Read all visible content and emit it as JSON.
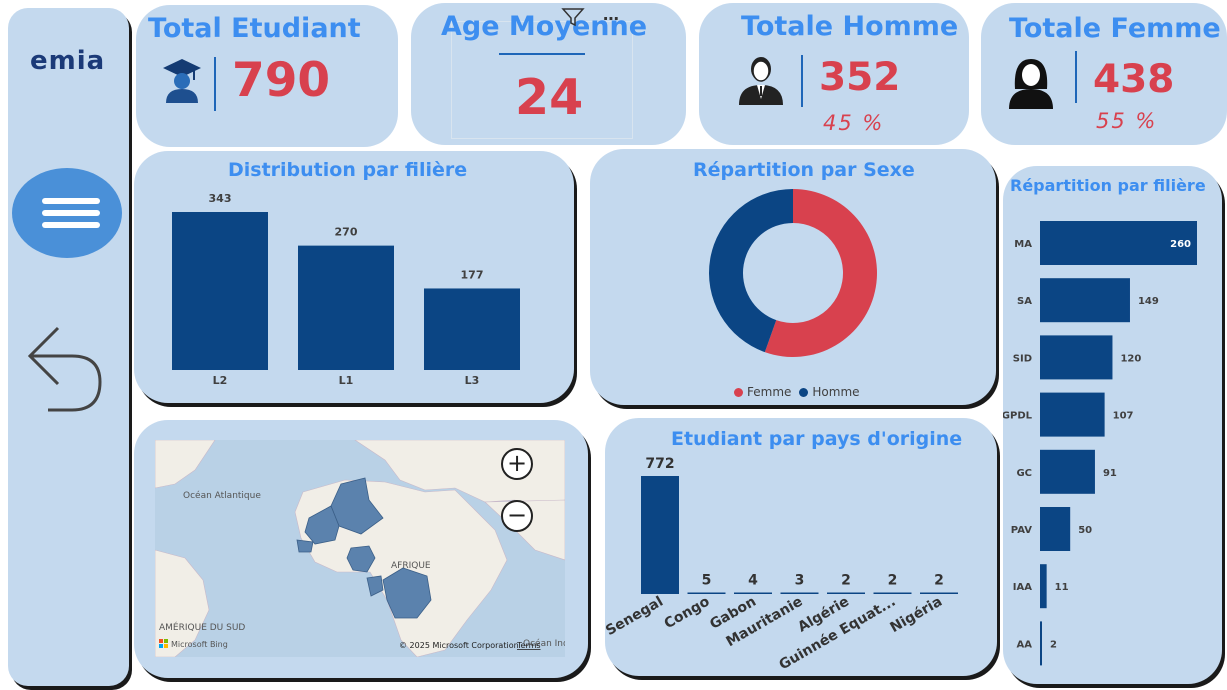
{
  "sidebar": {
    "logo_text": "emia",
    "menu_icon": "hamburger-icon",
    "back_icon": "back-arrow-icon"
  },
  "kpis": {
    "total_etudiant": {
      "title": "Total Etudiant",
      "value": "790"
    },
    "age_moyenne": {
      "title": "Age Moyenne",
      "value": "24"
    },
    "total_homme": {
      "title": "Totale Homme",
      "value": "352",
      "percent": "45 %"
    },
    "total_femme": {
      "title": "Totale Femme",
      "value": "438",
      "percent": "55 %"
    }
  },
  "map": {
    "labels": {
      "ocean": "Océan Atlantique",
      "afrique": "AFRIQUE",
      "amerique": "AMÉRIQUE DU SUD",
      "ocean_indien": "Océan Ind",
      "copyright": "© 2025 Microsoft Corporation",
      "terms": "Terms",
      "bing": "Microsoft Bing"
    }
  },
  "colors": {
    "accent": "#3d8ef0",
    "female": "#d8414e",
    "bar": "#0b4584",
    "panel": "#c4d9ee"
  },
  "chart_data": [
    {
      "id": "filiere_col",
      "type": "bar",
      "title": "Distribution par filière",
      "categories": [
        "L2",
        "L1",
        "L3"
      ],
      "values": [
        343,
        270,
        177
      ]
    },
    {
      "id": "sexe",
      "type": "pie",
      "title": "Répartition par Sexe",
      "series": [
        {
          "name": "Femme",
          "value": 438,
          "color": "#d8414e"
        },
        {
          "name": "Homme",
          "value": 352,
          "color": "#0b4584"
        }
      ]
    },
    {
      "id": "pays",
      "type": "bar",
      "title": "Etudiant par pays d'origine",
      "categories": [
        "Senegal",
        "Congo",
        "Gabon",
        "Mauritanie",
        "Algérie",
        "Guinnée Equat...",
        "Nigéria"
      ],
      "values": [
        772,
        5,
        4,
        3,
        2,
        2,
        2
      ]
    },
    {
      "id": "filiere_bar",
      "type": "bar",
      "orientation": "horizontal",
      "title": "Répartition par filière",
      "categories": [
        "MA",
        "SA",
        "SID",
        "GPDL",
        "GC",
        "PAV",
        "IAA",
        "AA"
      ],
      "values": [
        260,
        149,
        120,
        107,
        91,
        50,
        11,
        2
      ]
    }
  ]
}
